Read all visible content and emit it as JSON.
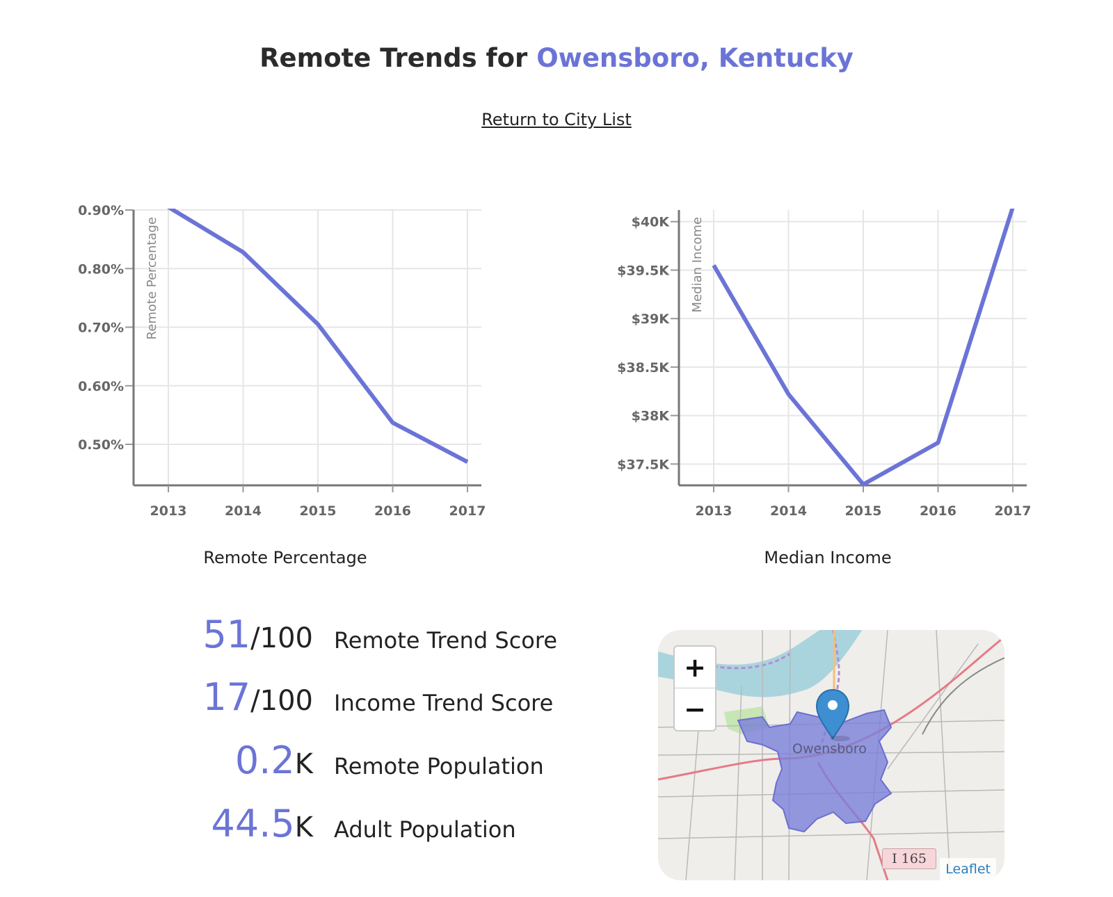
{
  "header": {
    "title_prefix": "Remote Trends for ",
    "city": "Owensboro, Kentucky",
    "back_link": "Return to City List"
  },
  "accent_color": "#6b74d6",
  "chart_data": [
    {
      "type": "line",
      "title": "",
      "caption": "Remote Percentage",
      "ylabel": "Remote Percentage",
      "xlabel": "",
      "x": [
        "2013",
        "2014",
        "2015",
        "2016",
        "2017"
      ],
      "series": [
        {
          "values": [
            0.905,
            0.828,
            0.705,
            0.537,
            0.47
          ]
        }
      ],
      "ylim": [
        0.43,
        0.9
      ],
      "yticks": [
        0.5,
        0.6,
        0.7,
        0.8,
        0.9
      ],
      "ytick_labels": [
        "0.50%",
        "0.60%",
        "0.70%",
        "0.80%",
        "0.90%"
      ],
      "grid": true,
      "color": "#6b74d6"
    },
    {
      "type": "line",
      "title": "",
      "caption": "Median Income",
      "ylabel": "Median Income",
      "xlabel": "",
      "x": [
        "2013",
        "2014",
        "2015",
        "2016",
        "2017"
      ],
      "series": [
        {
          "values": [
            39550,
            38220,
            37290,
            37720,
            40150
          ]
        }
      ],
      "ylim": [
        37280,
        40120
      ],
      "yticks": [
        37500,
        38000,
        38500,
        39000,
        39500,
        40000
      ],
      "ytick_labels": [
        "$37.5K",
        "$38K",
        "$38.5K",
        "$39K",
        "$39.5K",
        "$40K"
      ],
      "grid": true,
      "color": "#6b74d6"
    }
  ],
  "stats": [
    {
      "value": "51",
      "unit": "/100",
      "label": "Remote Trend Score"
    },
    {
      "value": "17",
      "unit": "/100",
      "label": "Income Trend Score"
    },
    {
      "value": "0.2",
      "unit": "K",
      "label": "Remote Population"
    },
    {
      "value": "44.5",
      "unit": "K",
      "label": "Adult Population"
    }
  ],
  "map": {
    "zoom_in": "+",
    "zoom_out": "−",
    "place_label": "Owensboro",
    "road_shield": "I 165",
    "attribution": "Leaflet",
    "marker_icon": "map-pin-icon"
  }
}
